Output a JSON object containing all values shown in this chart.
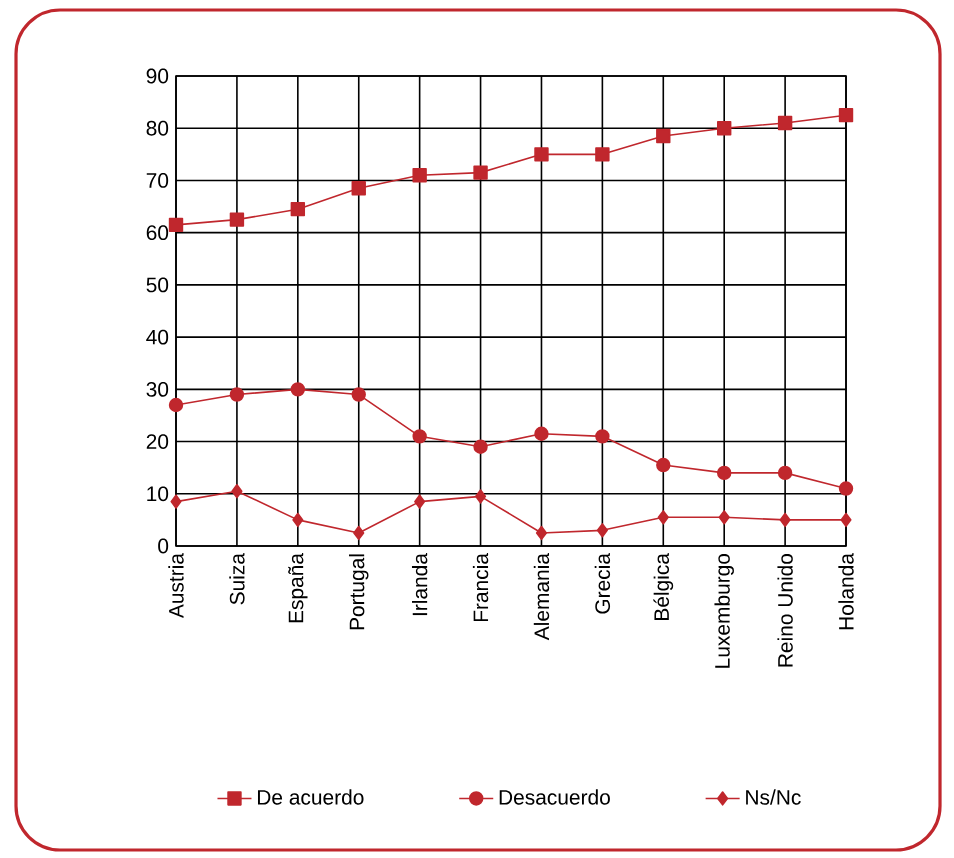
{
  "chart_data": {
    "type": "line",
    "categories": [
      "Austria",
      "Suiza",
      "España",
      "Portugal",
      "Irlanda",
      "Francia",
      "Alemania",
      "Grecia",
      "Bélgica",
      "Luxemburgo",
      "Reino Unido",
      "Holanda"
    ],
    "series": [
      {
        "name": "De acuerdo",
        "color": "#c0272d",
        "marker": "square",
        "values": [
          61.5,
          62.5,
          64.5,
          68.5,
          71,
          71.5,
          75,
          75,
          78.5,
          80,
          81,
          82.5
        ]
      },
      {
        "name": "Desacuerdo",
        "color": "#c0272d",
        "marker": "circle",
        "values": [
          27,
          29,
          30,
          29,
          21,
          19,
          21.5,
          21,
          15.5,
          14,
          14,
          11
        ]
      },
      {
        "name": "Ns/Nc",
        "color": "#c0272d",
        "marker": "diamond",
        "values": [
          8.5,
          10.5,
          5,
          2.5,
          8.5,
          9.5,
          2.5,
          3,
          5.5,
          5.5,
          5,
          5
        ]
      }
    ],
    "ylim": [
      0,
      90
    ],
    "yticks": [
      0,
      10,
      20,
      30,
      40,
      50,
      60,
      70,
      80,
      90
    ],
    "grid": true,
    "legend": "bottom",
    "line_style": "solid"
  }
}
